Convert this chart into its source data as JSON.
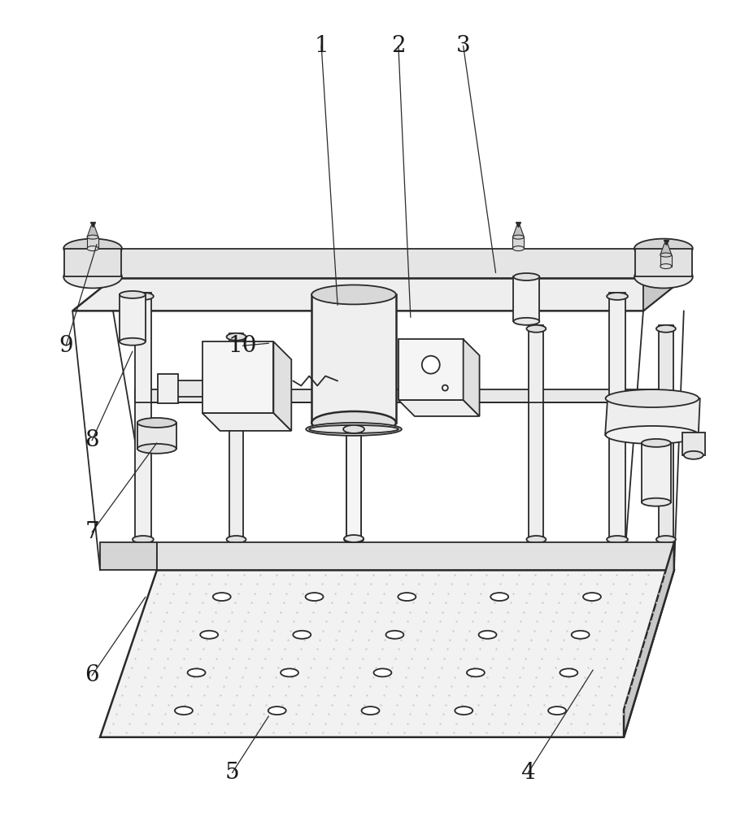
{
  "bg_color": "#ffffff",
  "line_color": "#2a2a2a",
  "lw": 1.3,
  "lw2": 1.8,
  "label_fontsize": 20,
  "label_color": "#1a1a1a",
  "labels_info": [
    [
      "1",
      395,
      945,
      415,
      625
    ],
    [
      "2",
      490,
      945,
      505,
      610
    ],
    [
      "3",
      570,
      945,
      610,
      665
    ],
    [
      "4",
      650,
      48,
      730,
      175
    ],
    [
      "5",
      285,
      48,
      330,
      118
    ],
    [
      "6",
      112,
      168,
      178,
      265
    ],
    [
      "7",
      112,
      345,
      192,
      455
    ],
    [
      "8",
      112,
      458,
      162,
      568
    ],
    [
      "9",
      80,
      575,
      118,
      700
    ],
    [
      "10",
      298,
      575,
      330,
      578
    ]
  ]
}
